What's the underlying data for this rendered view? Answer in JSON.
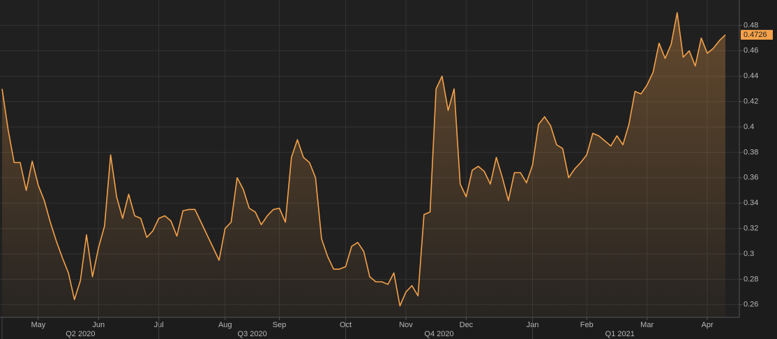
{
  "chart_data": {
    "type": "area-line",
    "categories": [
      "",
      "",
      "",
      "",
      "",
      "",
      "May",
      "",
      "",
      "",
      "",
      "",
      "",
      "",
      "",
      "",
      "Jun",
      "",
      "",
      "",
      "",
      "",
      "",
      "",
      "",
      "",
      "Jul",
      "",
      "",
      "",
      "",
      "",
      "",
      "",
      "",
      "",
      "",
      "Aug",
      "",
      "",
      "",
      "",
      "",
      "",
      "",
      "",
      "Sep",
      "",
      "",
      "",
      "",
      "",
      "",
      "",
      "",
      "",
      "",
      "Oct",
      "",
      "",
      "",
      "",
      "",
      "",
      "",
      "",
      "",
      "Nov",
      "",
      "",
      "",
      "",
      "",
      "",
      "",
      "",
      "",
      "Dec",
      "",
      "",
      "",
      "",
      "",
      "",
      "",
      "",
      "",
      "",
      "Jan",
      "",
      "",
      "",
      "",
      "",
      "",
      "",
      "",
      "Feb",
      "",
      "",
      "",
      "",
      "",
      "",
      "",
      "",
      "",
      "Mar",
      "",
      "",
      "",
      "",
      "",
      "",
      "",
      "",
      "",
      "Apr",
      "",
      "",
      ""
    ],
    "x_groups": [
      {
        "label": "Q2 2020",
        "from": 0,
        "to": 26
      },
      {
        "label": "Q3 2020",
        "from": 26,
        "to": 57
      },
      {
        "label": "Q4 2020",
        "from": 57,
        "to": 88
      },
      {
        "label": "Q1 2021",
        "from": 88,
        "to": 117
      }
    ],
    "series": [
      {
        "color": "#f5a24b",
        "values": [
          0.43,
          0.398,
          0.372,
          0.372,
          0.35,
          0.373,
          0.354,
          0.342,
          0.325,
          0.31,
          0.297,
          0.285,
          0.264,
          0.279,
          0.315,
          0.282,
          0.305,
          0.322,
          0.378,
          0.345,
          0.328,
          0.347,
          0.33,
          0.328,
          0.313,
          0.318,
          0.328,
          0.33,
          0.326,
          0.314,
          0.334,
          0.335,
          0.335,
          0.325,
          0.315,
          0.305,
          0.295,
          0.32,
          0.325,
          0.36,
          0.351,
          0.336,
          0.333,
          0.323,
          0.33,
          0.335,
          0.336,
          0.325,
          0.376,
          0.39,
          0.376,
          0.372,
          0.36,
          0.312,
          0.298,
          0.288,
          0.288,
          0.29,
          0.306,
          0.309,
          0.302,
          0.282,
          0.278,
          0.278,
          0.276,
          0.285,
          0.259,
          0.27,
          0.275,
          0.267,
          0.331,
          0.333,
          0.43,
          0.44,
          0.413,
          0.43,
          0.355,
          0.345,
          0.366,
          0.369,
          0.365,
          0.355,
          0.376,
          0.36,
          0.342,
          0.364,
          0.364,
          0.356,
          0.37,
          0.402,
          0.408,
          0.401,
          0.386,
          0.383,
          0.36,
          0.367,
          0.372,
          0.378,
          0.395,
          0.393,
          0.389,
          0.385,
          0.393,
          0.386,
          0.402,
          0.428,
          0.426,
          0.433,
          0.443,
          0.466,
          0.454,
          0.465,
          0.49,
          0.455,
          0.46,
          0.448,
          0.47,
          0.458,
          0.462,
          0.468,
          0.4726
        ]
      }
    ],
    "ylim": [
      0.25,
      0.5
    ],
    "yticks": [
      0.26,
      0.28,
      0.3,
      0.32,
      0.34,
      0.36,
      0.38,
      0.4,
      0.42,
      0.44,
      0.46,
      0.48
    ],
    "grid": true,
    "last_value_marker": true
  }
}
